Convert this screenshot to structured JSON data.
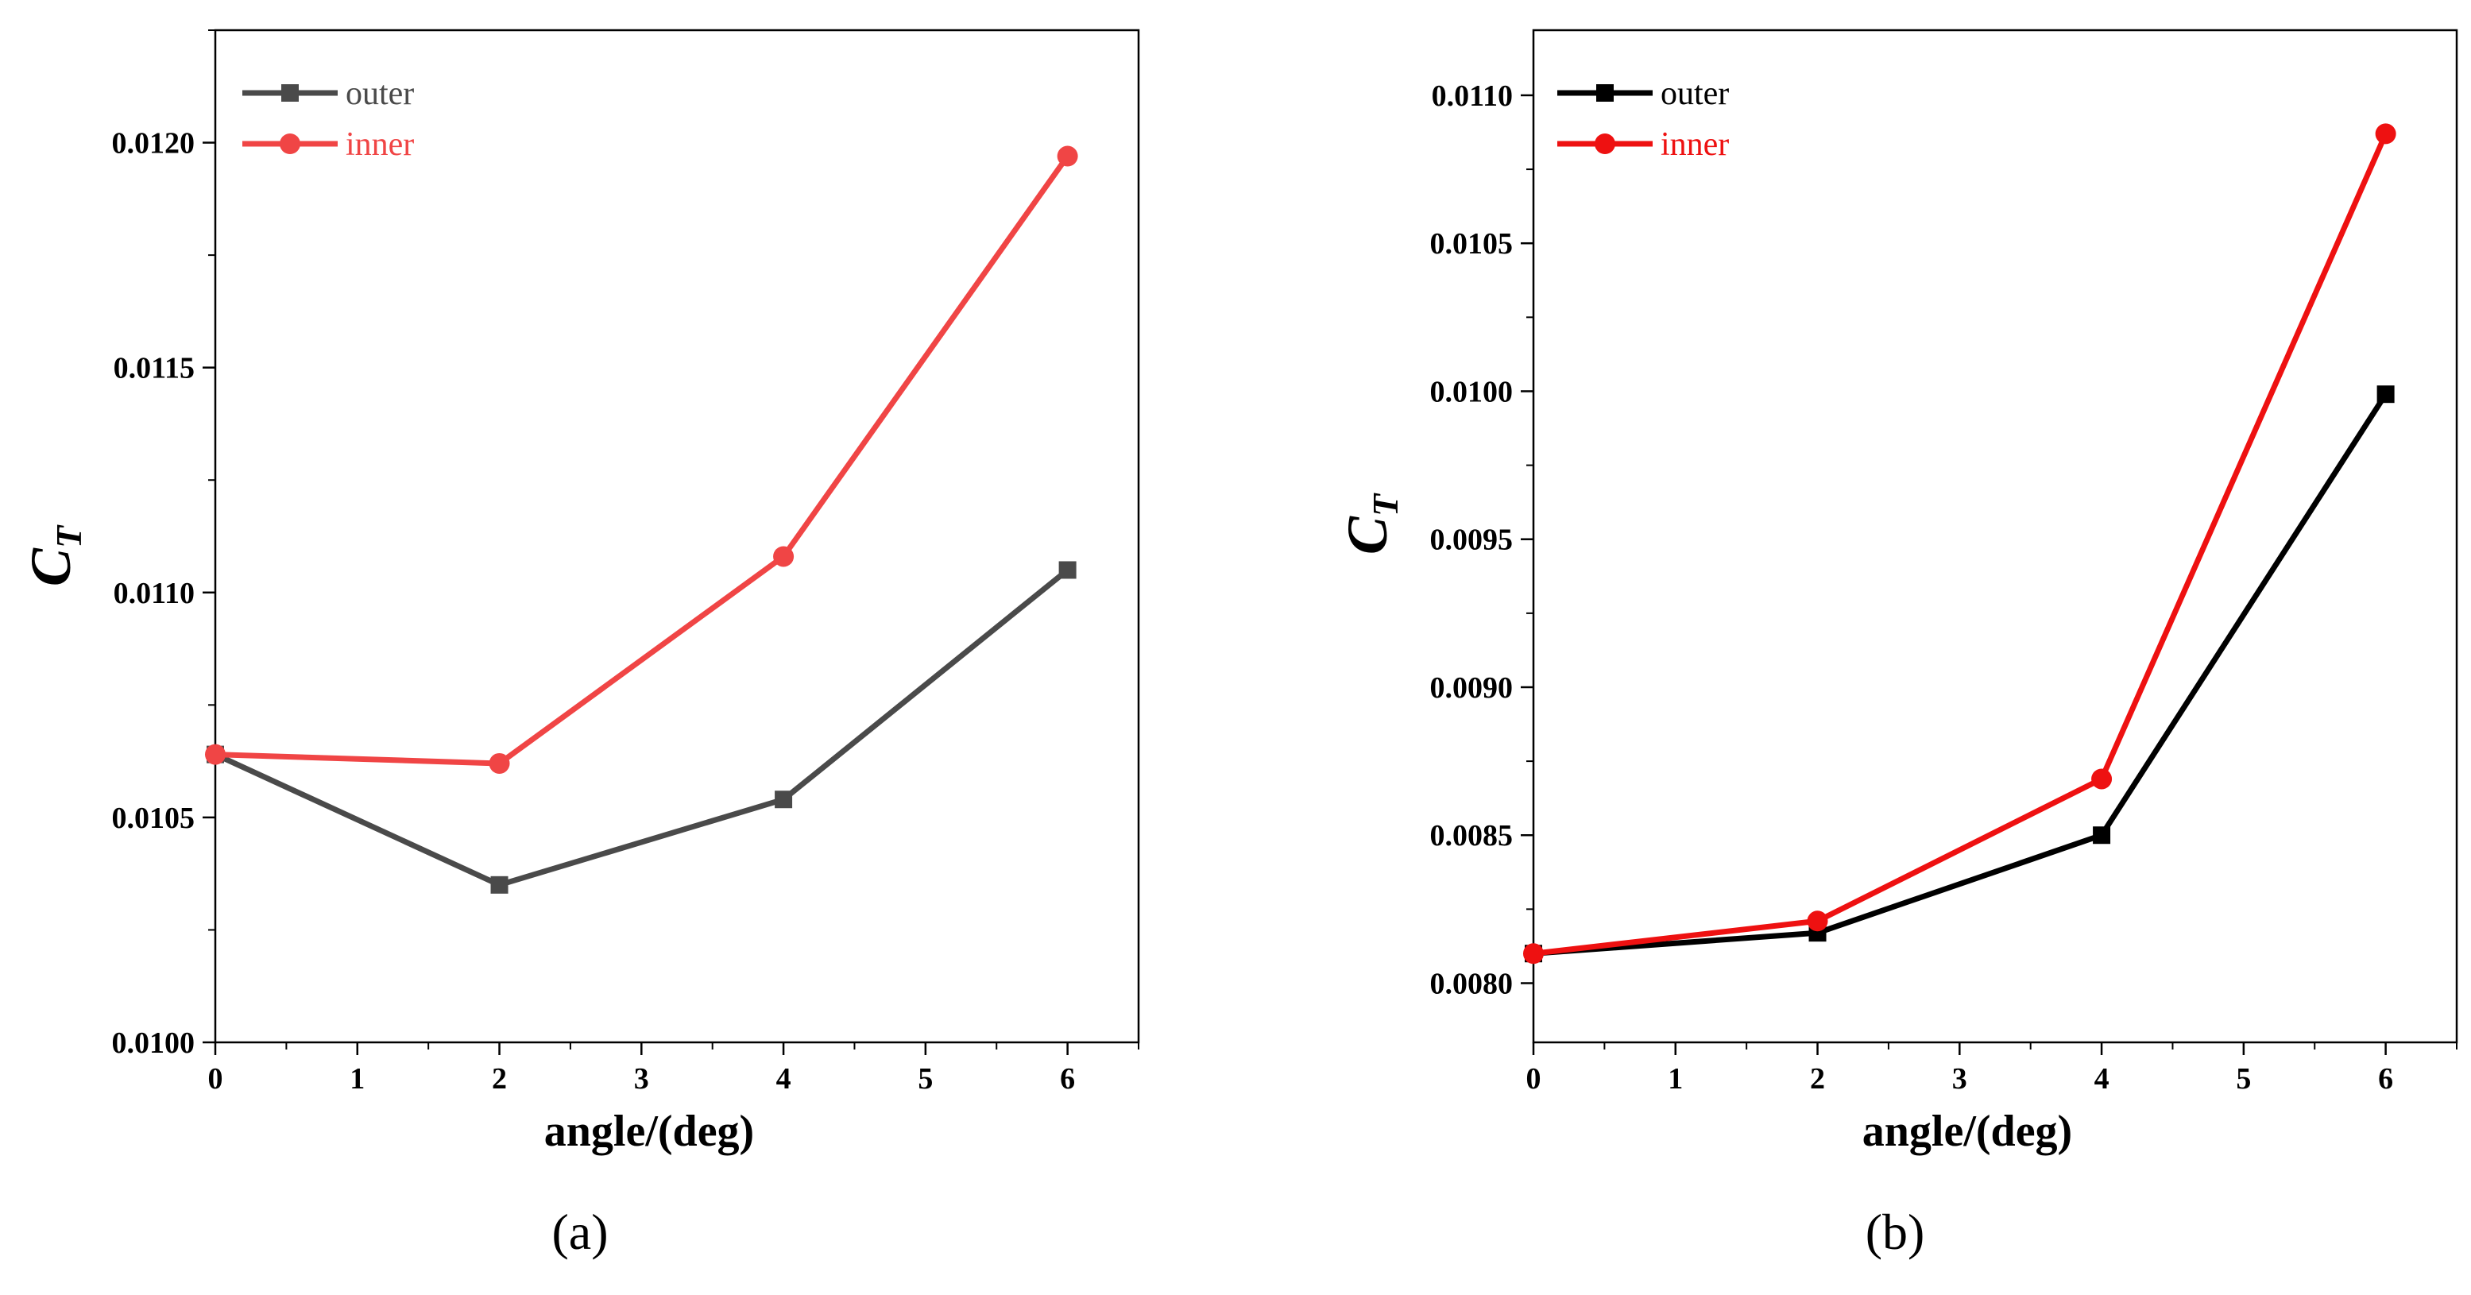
{
  "chart_data": [
    {
      "type": "line",
      "panel_label": "(a)",
      "panel_letter": "a",
      "xlabel": "angle/(deg)",
      "ylabel": "C",
      "ylabel_sub": "T",
      "xlim": [
        0,
        6.5
      ],
      "ylim": [
        0.01,
        0.01225
      ],
      "xticks": [
        0,
        1,
        2,
        3,
        4,
        5,
        6
      ],
      "xtick_labels": [
        "0",
        "1",
        "2",
        "3",
        "4",
        "5",
        "6"
      ],
      "yticks": [
        0.01,
        0.0105,
        0.011,
        0.0115,
        0.012
      ],
      "ytick_labels": [
        "0.0100",
        "0.0105",
        "0.0110",
        "0.0115",
        "0.0120"
      ],
      "legend_position": "top-left",
      "series": [
        {
          "name": "outer",
          "marker": "square",
          "color": "#4a4a4a",
          "x": [
            0,
            2,
            4,
            6
          ],
          "values": [
            0.01064,
            0.01035,
            0.01054,
            0.01105
          ]
        },
        {
          "name": "inner",
          "marker": "circle",
          "color": "#f04545",
          "x": [
            0,
            2,
            4,
            6
          ],
          "values": [
            0.01064,
            0.01062,
            0.01108,
            0.01197
          ]
        }
      ]
    },
    {
      "type": "line",
      "panel_label": "(b)",
      "panel_letter": "b",
      "xlabel": "angle/(deg)",
      "ylabel": "C",
      "ylabel_sub": "T",
      "xlim": [
        0,
        6.5
      ],
      "ylim": [
        0.0078,
        0.01122
      ],
      "xticks": [
        0,
        1,
        2,
        3,
        4,
        5,
        6
      ],
      "xtick_labels": [
        "0",
        "1",
        "2",
        "3",
        "4",
        "5",
        "6"
      ],
      "yticks": [
        0.008,
        0.0085,
        0.009,
        0.0095,
        0.01,
        0.0105,
        0.011
      ],
      "ytick_labels": [
        "0.0080",
        "0.0085",
        "0.0090",
        "0.0095",
        "0.0100",
        "0.0105",
        "0.0110"
      ],
      "legend_position": "top-left",
      "series": [
        {
          "name": "outer",
          "marker": "square",
          "color": "#000000",
          "x": [
            0,
            2,
            4,
            6
          ],
          "values": [
            0.0081,
            0.00817,
            0.0085,
            0.00999
          ]
        },
        {
          "name": "inner",
          "marker": "circle",
          "color": "#ee1111",
          "x": [
            0,
            2,
            4,
            6
          ],
          "values": [
            0.0081,
            0.00821,
            0.00869,
            0.01087
          ]
        }
      ]
    }
  ]
}
